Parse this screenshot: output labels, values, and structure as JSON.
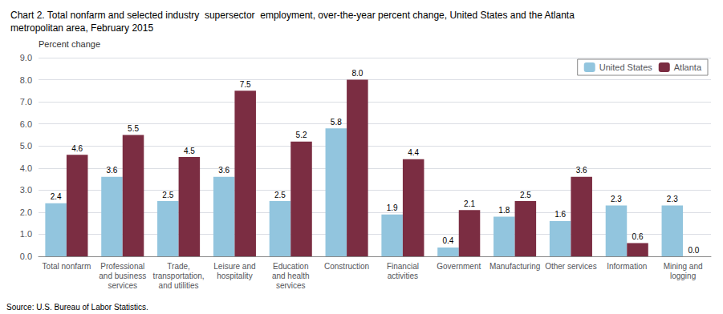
{
  "chart_data": {
    "type": "bar",
    "title": "Chart 2. Total nonfarm and selected industry  supersector  employment, over-the-year percent change, United States and the Atlanta\nmetropolitan area, February 2015",
    "ylabel": "Percent change",
    "source": "Source: U.S. Bureau of Labor Statistics.",
    "categories": [
      "Total nonfarm",
      "Professional\nand business\nservices",
      "Trade,\ntransportation,\nand utilities",
      "Leisure and\nhospitality",
      "Education\nand health\nservices",
      "Construction",
      "Financial\nactivities",
      "Government",
      "Manufacturing",
      "Other services",
      "Information",
      "Mining and\nlogging"
    ],
    "series": [
      {
        "name": "United States",
        "color": "#92C5DE",
        "values": [
          2.4,
          3.6,
          2.5,
          3.6,
          2.5,
          5.8,
          1.9,
          0.4,
          1.8,
          1.6,
          2.3,
          2.3
        ]
      },
      {
        "name": "Atlanta",
        "color": "#7B2D42",
        "values": [
          4.6,
          5.5,
          4.5,
          7.5,
          5.2,
          8.0,
          4.4,
          2.1,
          2.5,
          3.6,
          0.6,
          0.0
        ],
        "value_labels": [
          "4.6",
          "5.5",
          "4.5",
          "7.5",
          "5.2",
          "8.0",
          "4.4",
          "2.1",
          "2.5",
          "3.6",
          "0.6",
          "0.0"
        ]
      }
    ],
    "ylim": [
      0,
      9.0
    ],
    "yticks": [
      {
        "value": 0.0,
        "label": "0.0"
      },
      {
        "value": 1.0,
        "label": "1.0"
      },
      {
        "value": 2.0,
        "label": "2.0"
      },
      {
        "value": 3.0,
        "label": "3.0"
      },
      {
        "value": 4.0,
        "label": "4.0"
      },
      {
        "value": 5.0,
        "label": "5.0"
      },
      {
        "value": 6.0,
        "label": "6.0"
      },
      {
        "value": 7.0,
        "label": "7.0"
      },
      {
        "value": 8.0,
        "label": "8.0"
      },
      {
        "value": 9.0,
        "label": "9.0"
      }
    ],
    "grid": true,
    "legend": "upper right",
    "data_labels": true
  }
}
